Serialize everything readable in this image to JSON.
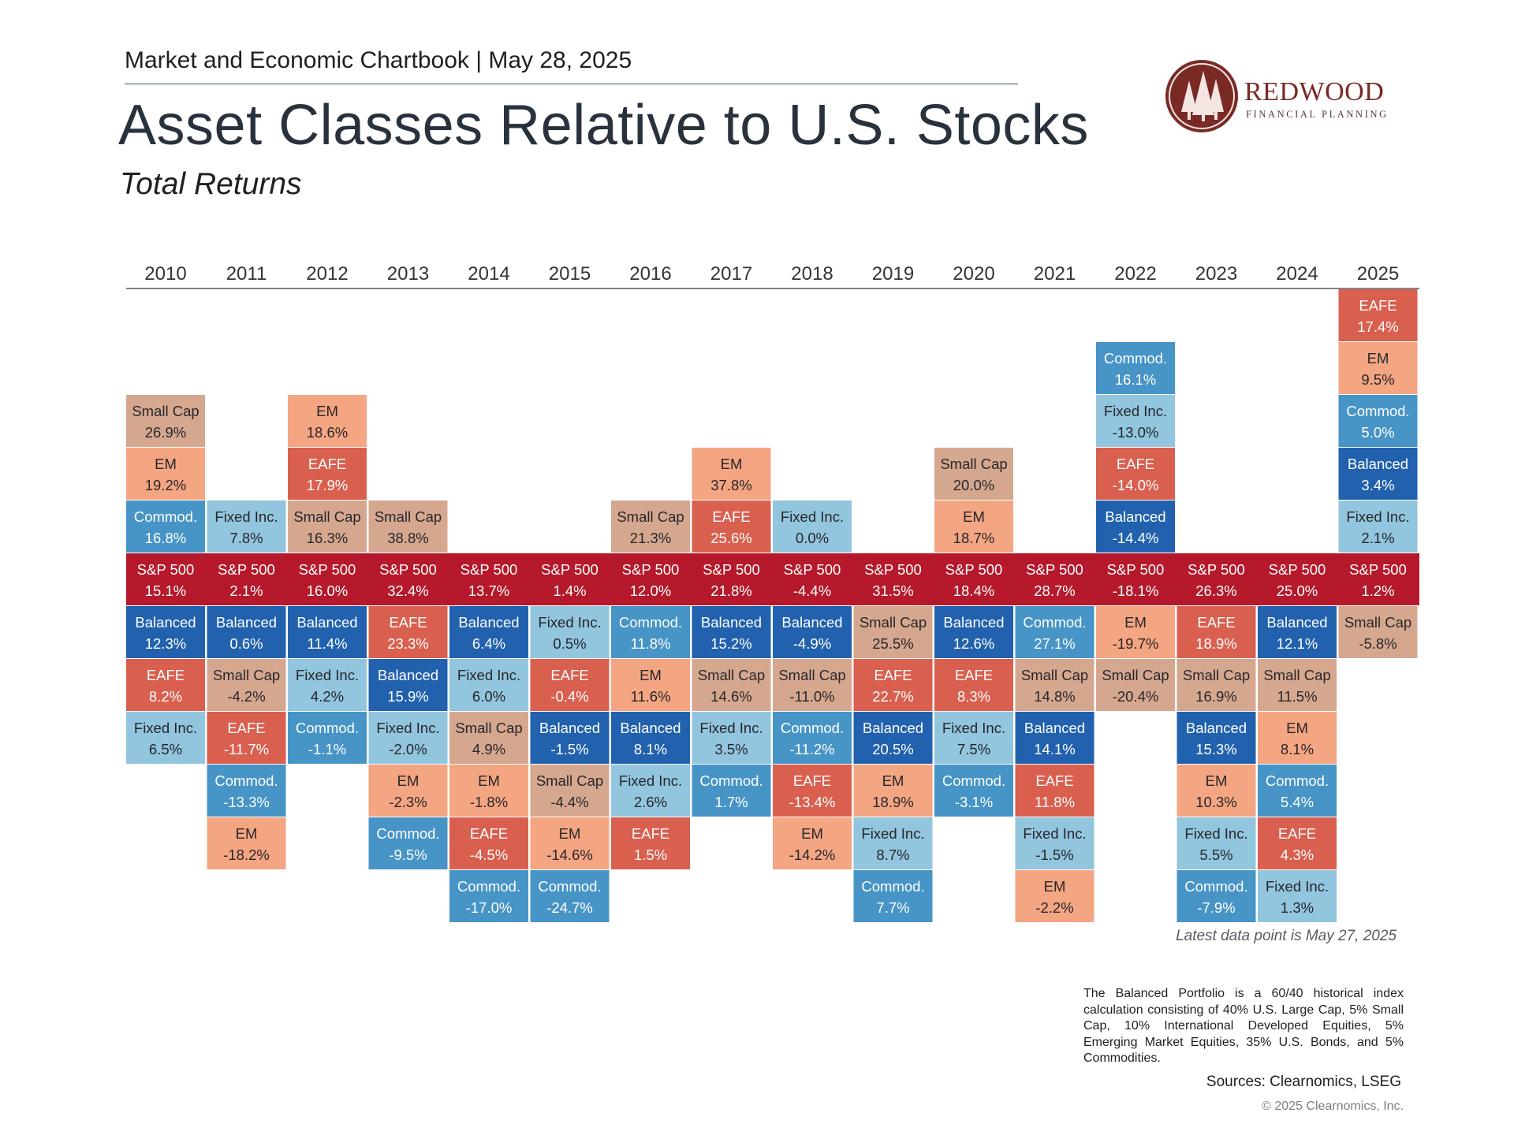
{
  "header": {
    "chartbook": "Market and Economic Chartbook | May 28, 2025",
    "title": "Asset Classes Relative to U.S. Stocks",
    "subtitle": "Total Returns"
  },
  "logo": {
    "word": "REDWOOD",
    "subtitle": "FINANCIAL PLANNING"
  },
  "colors": {
    "S&P 500": "#b5192b",
    "EAFE": "#d95f4f",
    "EM": "#f4a582",
    "Small Cap": "#d6a78f",
    "Commod.": "#4794c6",
    "Fixed Inc.": "#92c5de",
    "Balanced": "#2161ae"
  },
  "chart_data": {
    "type": "table",
    "title": "Asset Classes Relative to U.S. Stocks",
    "subtitle": "Total Returns",
    "pivot": "S&P 500",
    "years": [
      {
        "year": "2010",
        "above": [
          {
            "asset": "Small Cap",
            "value": "26.9%"
          },
          {
            "asset": "EM",
            "value": "19.2%"
          },
          {
            "asset": "Commod.",
            "value": "16.8%"
          }
        ],
        "sp500": "15.1%",
        "below": [
          {
            "asset": "Balanced",
            "value": "12.3%"
          },
          {
            "asset": "EAFE",
            "value": "8.2%"
          },
          {
            "asset": "Fixed Inc.",
            "value": "6.5%"
          }
        ]
      },
      {
        "year": "2011",
        "above": [
          {
            "asset": "Fixed Inc.",
            "value": "7.8%"
          }
        ],
        "sp500": "2.1%",
        "below": [
          {
            "asset": "Balanced",
            "value": "0.6%"
          },
          {
            "asset": "Small Cap",
            "value": "-4.2%"
          },
          {
            "asset": "EAFE",
            "value": "-11.7%"
          },
          {
            "asset": "Commod.",
            "value": "-13.3%"
          },
          {
            "asset": "EM",
            "value": "-18.2%"
          }
        ]
      },
      {
        "year": "2012",
        "above": [
          {
            "asset": "EM",
            "value": "18.6%"
          },
          {
            "asset": "EAFE",
            "value": "17.9%"
          },
          {
            "asset": "Small Cap",
            "value": "16.3%"
          }
        ],
        "sp500": "16.0%",
        "below": [
          {
            "asset": "Balanced",
            "value": "11.4%"
          },
          {
            "asset": "Fixed Inc.",
            "value": "4.2%"
          },
          {
            "asset": "Commod.",
            "value": "-1.1%"
          }
        ]
      },
      {
        "year": "2013",
        "above": [
          {
            "asset": "Small Cap",
            "value": "38.8%"
          }
        ],
        "sp500": "32.4%",
        "below": [
          {
            "asset": "EAFE",
            "value": "23.3%"
          },
          {
            "asset": "Balanced",
            "value": "15.9%"
          },
          {
            "asset": "Fixed Inc.",
            "value": "-2.0%"
          },
          {
            "asset": "EM",
            "value": "-2.3%"
          },
          {
            "asset": "Commod.",
            "value": "-9.5%"
          }
        ]
      },
      {
        "year": "2014",
        "above": [],
        "sp500": "13.7%",
        "below": [
          {
            "asset": "Balanced",
            "value": "6.4%"
          },
          {
            "asset": "Fixed Inc.",
            "value": "6.0%"
          },
          {
            "asset": "Small Cap",
            "value": "4.9%"
          },
          {
            "asset": "EM",
            "value": "-1.8%"
          },
          {
            "asset": "EAFE",
            "value": "-4.5%"
          },
          {
            "asset": "Commod.",
            "value": "-17.0%"
          }
        ]
      },
      {
        "year": "2015",
        "above": [],
        "sp500": "1.4%",
        "below": [
          {
            "asset": "Fixed Inc.",
            "value": "0.5%"
          },
          {
            "asset": "EAFE",
            "value": "-0.4%"
          },
          {
            "asset": "Balanced",
            "value": "-1.5%"
          },
          {
            "asset": "Small Cap",
            "value": "-4.4%"
          },
          {
            "asset": "EM",
            "value": "-14.6%"
          },
          {
            "asset": "Commod.",
            "value": "-24.7%"
          }
        ]
      },
      {
        "year": "2016",
        "above": [
          {
            "asset": "Small Cap",
            "value": "21.3%"
          }
        ],
        "sp500": "12.0%",
        "below": [
          {
            "asset": "Commod.",
            "value": "11.8%"
          },
          {
            "asset": "EM",
            "value": "11.6%"
          },
          {
            "asset": "Balanced",
            "value": "8.1%"
          },
          {
            "asset": "Fixed Inc.",
            "value": "2.6%"
          },
          {
            "asset": "EAFE",
            "value": "1.5%"
          }
        ]
      },
      {
        "year": "2017",
        "above": [
          {
            "asset": "EM",
            "value": "37.8%"
          },
          {
            "asset": "EAFE",
            "value": "25.6%"
          }
        ],
        "sp500": "21.8%",
        "below": [
          {
            "asset": "Balanced",
            "value": "15.2%"
          },
          {
            "asset": "Small Cap",
            "value": "14.6%"
          },
          {
            "asset": "Fixed Inc.",
            "value": "3.5%"
          },
          {
            "asset": "Commod.",
            "value": "1.7%"
          }
        ]
      },
      {
        "year": "2018",
        "above": [
          {
            "asset": "Fixed Inc.",
            "value": "0.0%"
          }
        ],
        "sp500": "-4.4%",
        "below": [
          {
            "asset": "Balanced",
            "value": "-4.9%"
          },
          {
            "asset": "Small Cap",
            "value": "-11.0%"
          },
          {
            "asset": "Commod.",
            "value": "-11.2%"
          },
          {
            "asset": "EAFE",
            "value": "-13.4%"
          },
          {
            "asset": "EM",
            "value": "-14.2%"
          }
        ]
      },
      {
        "year": "2019",
        "above": [],
        "sp500": "31.5%",
        "below": [
          {
            "asset": "Small Cap",
            "value": "25.5%"
          },
          {
            "asset": "EAFE",
            "value": "22.7%"
          },
          {
            "asset": "Balanced",
            "value": "20.5%"
          },
          {
            "asset": "EM",
            "value": "18.9%"
          },
          {
            "asset": "Fixed Inc.",
            "value": "8.7%"
          },
          {
            "asset": "Commod.",
            "value": "7.7%"
          }
        ]
      },
      {
        "year": "2020",
        "above": [
          {
            "asset": "Small Cap",
            "value": "20.0%"
          },
          {
            "asset": "EM",
            "value": "18.7%"
          }
        ],
        "sp500": "18.4%",
        "below": [
          {
            "asset": "Balanced",
            "value": "12.6%"
          },
          {
            "asset": "EAFE",
            "value": "8.3%"
          },
          {
            "asset": "Fixed Inc.",
            "value": "7.5%"
          },
          {
            "asset": "Commod.",
            "value": "-3.1%"
          }
        ]
      },
      {
        "year": "2021",
        "above": [],
        "sp500": "28.7%",
        "below": [
          {
            "asset": "Commod.",
            "value": "27.1%"
          },
          {
            "asset": "Small Cap",
            "value": "14.8%"
          },
          {
            "asset": "Balanced",
            "value": "14.1%"
          },
          {
            "asset": "EAFE",
            "value": "11.8%"
          },
          {
            "asset": "Fixed Inc.",
            "value": "-1.5%"
          },
          {
            "asset": "EM",
            "value": "-2.2%"
          }
        ]
      },
      {
        "year": "2022",
        "above": [
          {
            "asset": "Commod.",
            "value": "16.1%"
          },
          {
            "asset": "Fixed Inc.",
            "value": "-13.0%"
          },
          {
            "asset": "EAFE",
            "value": "-14.0%"
          },
          {
            "asset": "Balanced",
            "value": "-14.4%"
          }
        ],
        "sp500": "-18.1%",
        "below": [
          {
            "asset": "EM",
            "value": "-19.7%"
          },
          {
            "asset": "Small Cap",
            "value": "-20.4%"
          }
        ]
      },
      {
        "year": "2023",
        "above": [],
        "sp500": "26.3%",
        "below": [
          {
            "asset": "EAFE",
            "value": "18.9%"
          },
          {
            "asset": "Small Cap",
            "value": "16.9%"
          },
          {
            "asset": "Balanced",
            "value": "15.3%"
          },
          {
            "asset": "EM",
            "value": "10.3%"
          },
          {
            "asset": "Fixed Inc.",
            "value": "5.5%"
          },
          {
            "asset": "Commod.",
            "value": "-7.9%"
          }
        ]
      },
      {
        "year": "2024",
        "above": [],
        "sp500": "25.0%",
        "below": [
          {
            "asset": "Balanced",
            "value": "12.1%"
          },
          {
            "asset": "Small Cap",
            "value": "11.5%"
          },
          {
            "asset": "EM",
            "value": "8.1%"
          },
          {
            "asset": "Commod.",
            "value": "5.4%"
          },
          {
            "asset": "EAFE",
            "value": "4.3%"
          },
          {
            "asset": "Fixed Inc.",
            "value": "1.3%"
          }
        ]
      },
      {
        "year": "2025",
        "above": [
          {
            "asset": "EAFE",
            "value": "17.4%"
          },
          {
            "asset": "EM",
            "value": "9.5%"
          },
          {
            "asset": "Commod.",
            "value": "5.0%"
          },
          {
            "asset": "Balanced",
            "value": "3.4%"
          },
          {
            "asset": "Fixed Inc.",
            "value": "2.1%"
          }
        ],
        "sp500": "1.2%",
        "below": [
          {
            "asset": "Small Cap",
            "value": "-5.8%"
          }
        ]
      }
    ]
  },
  "footer": {
    "latest": "Latest data point is May 27, 2025",
    "note": "The Balanced Portfolio is a 60/40 historical index calculation consisting of 40% U.S. Large Cap, 5% Small Cap, 10% International Developed Equities, 5% Emerging Market Equities, 35% U.S. Bonds, and 5% Commodities.",
    "sources": "Sources: Clearnomics, LSEG",
    "copyright": "© 2025 Clearnomics, Inc."
  }
}
